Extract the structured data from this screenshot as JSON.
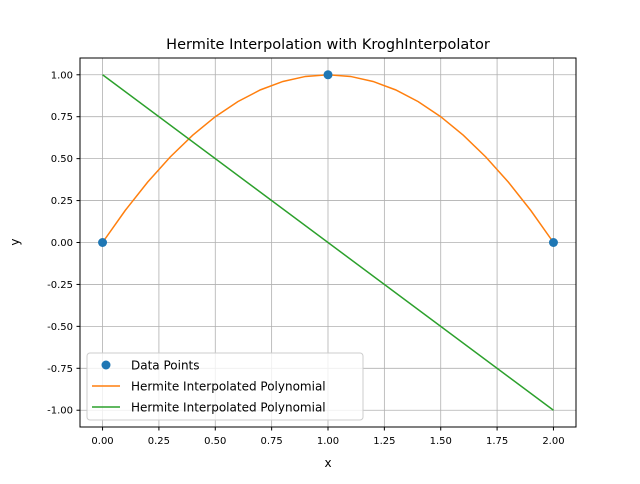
{
  "chart_data": {
    "type": "line",
    "title": "Hermite Interpolation with KroghInterpolator",
    "xlabel": "x",
    "ylabel": "y",
    "xlim": [
      -0.1,
      2.1
    ],
    "ylim": [
      -1.1,
      1.1
    ],
    "xticks": [
      "0.00",
      "0.25",
      "0.50",
      "0.75",
      "1.00",
      "1.25",
      "1.50",
      "1.75",
      "2.00"
    ],
    "yticks": [
      "-1.00",
      "-0.75",
      "-0.50",
      "-0.25",
      "0.00",
      "0.25",
      "0.50",
      "0.75",
      "1.00"
    ],
    "grid": true,
    "legend_position": "lower left",
    "series": [
      {
        "name": "Data Points",
        "kind": "scatter",
        "color": "#1f77b4",
        "x": [
          0,
          1,
          2
        ],
        "y": [
          0,
          1,
          0
        ]
      },
      {
        "name": "Hermite Interpolated Polynomial",
        "kind": "line",
        "color": "#ff7f0e",
        "x": [
          0,
          0.1,
          0.2,
          0.3,
          0.4,
          0.5,
          0.6,
          0.7,
          0.8,
          0.9,
          1.0,
          1.1,
          1.2,
          1.3,
          1.4,
          1.5,
          1.6,
          1.7,
          1.8,
          1.9,
          2.0
        ],
        "y": [
          0,
          0.19,
          0.36,
          0.51,
          0.64,
          0.75,
          0.84,
          0.91,
          0.96,
          0.99,
          1.0,
          0.99,
          0.96,
          0.91,
          0.84,
          0.75,
          0.64,
          0.51,
          0.36,
          0.19,
          0
        ]
      },
      {
        "name": "Hermite Interpolated Polynomial",
        "kind": "line",
        "color": "#2ca02c",
        "x": [
          0,
          2
        ],
        "y": [
          1,
          -1
        ]
      }
    ]
  }
}
